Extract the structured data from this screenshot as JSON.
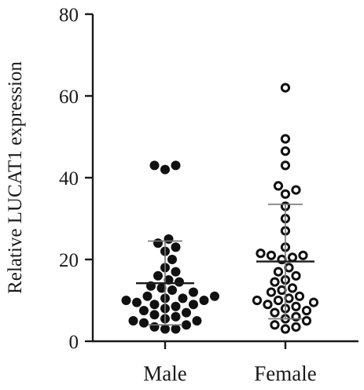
{
  "chart_data": {
    "type": "scatter",
    "ylabel": "Relative LUCAT1 expression",
    "ylim": [
      0,
      80
    ],
    "yticks": [
      0,
      20,
      40,
      60,
      80
    ],
    "categories": [
      "Male",
      "Female"
    ],
    "grid": false,
    "series": [
      {
        "name": "Male",
        "marker": "filled-circle",
        "color": "#111111",
        "mean": 14.2,
        "sd_upper": 24.5,
        "sd_lower": 4.0,
        "values": [
          43,
          42,
          43,
          25,
          24,
          23,
          22,
          20,
          18,
          17,
          16,
          15,
          14.5,
          13.5,
          13,
          12.5,
          12,
          11,
          11,
          10.5,
          10.5,
          10,
          10,
          9.5,
          9,
          9,
          8.5,
          8,
          7.5,
          7,
          6.5,
          6,
          5.5,
          5,
          5,
          4.5,
          4,
          3.5,
          3,
          3
        ]
      },
      {
        "name": "Female",
        "marker": "open-circle",
        "color": "#111111",
        "mean": 19.5,
        "sd_upper": 33.5,
        "sd_lower": 5.5,
        "values": [
          62,
          49.5,
          46.5,
          43,
          38,
          37,
          36,
          33,
          30,
          27,
          23,
          21.5,
          21,
          21,
          20.5,
          20,
          18,
          17,
          16,
          15,
          14.5,
          13,
          12.5,
          12,
          11,
          10.5,
          10,
          10,
          9.5,
          9,
          8.5,
          8,
          7.5,
          7,
          6,
          5.5,
          5,
          4,
          3.5,
          3
        ]
      }
    ]
  }
}
